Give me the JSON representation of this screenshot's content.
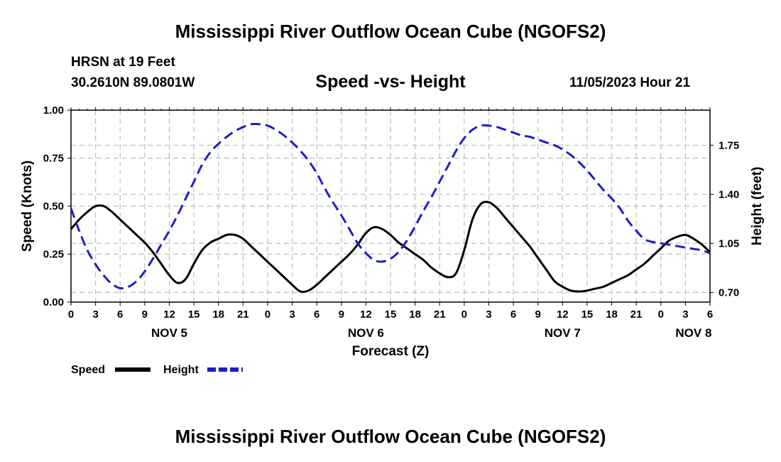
{
  "titles": {
    "main": "Mississippi River Outflow Ocean Cube (NGOFS2)",
    "main_repeat": "Mississippi River Outflow Ocean Cube (NGOFS2)",
    "station": "HRSN at 19 Feet",
    "coords": "30.2610N  89.0801W",
    "subtitle": "Speed -vs- Height",
    "datetime": "11/05/2023 Hour 21"
  },
  "chart_data": {
    "type": "line",
    "title": "Speed -vs- Height",
    "xlabel": "Forecast (Z)",
    "ylabel": "Speed (Knots)",
    "y2label": "Height (feet)",
    "x_unit": "hours since 11/05 00Z",
    "xlim": [
      0,
      78
    ],
    "ylim": [
      0,
      1.0
    ],
    "y2lim": [
      0.631,
      2.0
    ],
    "x_tick_values": [
      0,
      3,
      6,
      9,
      12,
      15,
      18,
      21,
      24,
      27,
      30,
      33,
      36,
      39,
      42,
      45,
      48,
      51,
      54,
      57,
      60,
      63,
      66,
      69,
      72,
      75,
      78
    ],
    "x_tick_labels": [
      "0",
      "3",
      "6",
      "9",
      "12",
      "15",
      "18",
      "21",
      "0",
      "3",
      "6",
      "9",
      "12",
      "15",
      "18",
      "21",
      "0",
      "3",
      "6",
      "9",
      "12",
      "15",
      "18",
      "21",
      "0",
      "3",
      "6"
    ],
    "y_ticks": [
      0.0,
      0.25,
      0.5,
      0.75,
      1.0
    ],
    "y_tick_labels": [
      "0.00",
      "0.25",
      "0.50",
      "0.75",
      "1.00"
    ],
    "y2_ticks": [
      0.7,
      1.05,
      1.4,
      1.75
    ],
    "y2_tick_labels": [
      "0.70",
      "1.05",
      "1.40",
      "1.75"
    ],
    "day_labels": [
      {
        "x": 12,
        "label": "NOV 5"
      },
      {
        "x": 36,
        "label": "NOV 6"
      },
      {
        "x": 60,
        "label": "NOV 7"
      },
      {
        "x": 76,
        "label": "NOV 8"
      }
    ],
    "grid": true,
    "legend": {
      "position": "bottom-left"
    },
    "series": [
      {
        "name": "Speed",
        "axis": "left",
        "color": "#000000",
        "dash": "solid",
        "x": [
          0,
          1,
          2,
          3,
          4,
          5,
          6,
          7,
          8,
          9,
          10,
          11,
          12,
          13,
          14,
          15,
          16,
          17,
          18,
          19,
          20,
          21,
          22,
          23,
          24,
          25,
          26,
          27,
          28,
          29,
          30,
          31,
          32,
          33,
          34,
          35,
          36,
          37,
          38,
          39,
          40,
          41,
          42,
          43,
          44,
          45,
          46,
          47,
          48,
          49,
          50,
          51,
          52,
          53,
          54,
          55,
          56,
          57,
          58,
          59,
          60,
          61,
          62,
          63,
          64,
          65,
          66,
          67,
          68,
          69,
          70,
          71,
          72,
          73,
          74,
          75,
          76,
          77,
          78
        ],
        "values": [
          0.38,
          0.43,
          0.47,
          0.5,
          0.5,
          0.47,
          0.43,
          0.39,
          0.35,
          0.31,
          0.26,
          0.2,
          0.14,
          0.1,
          0.12,
          0.2,
          0.27,
          0.31,
          0.33,
          0.35,
          0.35,
          0.33,
          0.29,
          0.25,
          0.21,
          0.17,
          0.13,
          0.09,
          0.055,
          0.06,
          0.09,
          0.13,
          0.17,
          0.21,
          0.25,
          0.3,
          0.36,
          0.39,
          0.38,
          0.35,
          0.31,
          0.28,
          0.25,
          0.22,
          0.18,
          0.15,
          0.13,
          0.15,
          0.27,
          0.43,
          0.51,
          0.52,
          0.49,
          0.44,
          0.39,
          0.34,
          0.29,
          0.23,
          0.17,
          0.11,
          0.08,
          0.06,
          0.055,
          0.06,
          0.07,
          0.08,
          0.1,
          0.12,
          0.14,
          0.17,
          0.2,
          0.24,
          0.28,
          0.32,
          0.34,
          0.35,
          0.33,
          0.3,
          0.26
        ]
      },
      {
        "name": "Height",
        "axis": "right",
        "color": "#1e1ec8",
        "dash": "14,7",
        "x": [
          0,
          1,
          2,
          3,
          4,
          5,
          6,
          7,
          8,
          9,
          10,
          11,
          12,
          13,
          14,
          15,
          16,
          17,
          18,
          19,
          20,
          21,
          22,
          23,
          24,
          25,
          26,
          27,
          28,
          29,
          30,
          31,
          32,
          33,
          34,
          35,
          36,
          37,
          38,
          39,
          40,
          41,
          42,
          43,
          44,
          45,
          46,
          47,
          48,
          49,
          50,
          51,
          52,
          53,
          54,
          55,
          56,
          57,
          58,
          59,
          60,
          61,
          62,
          63,
          64,
          65,
          66,
          67,
          68,
          69,
          70,
          71,
          72,
          73,
          74,
          75,
          76,
          77,
          78
        ],
        "values": [
          1.3,
          1.14,
          1.0,
          0.9,
          0.82,
          0.76,
          0.73,
          0.74,
          0.78,
          0.85,
          0.94,
          1.04,
          1.14,
          1.25,
          1.37,
          1.49,
          1.61,
          1.7,
          1.76,
          1.81,
          1.85,
          1.88,
          1.9,
          1.9,
          1.89,
          1.86,
          1.82,
          1.77,
          1.71,
          1.64,
          1.55,
          1.44,
          1.34,
          1.25,
          1.15,
          1.05,
          0.98,
          0.93,
          0.92,
          0.94,
          0.99,
          1.07,
          1.17,
          1.28,
          1.38,
          1.49,
          1.6,
          1.71,
          1.8,
          1.86,
          1.89,
          1.89,
          1.88,
          1.86,
          1.84,
          1.82,
          1.81,
          1.79,
          1.77,
          1.75,
          1.72,
          1.68,
          1.63,
          1.57,
          1.5,
          1.43,
          1.37,
          1.3,
          1.21,
          1.14,
          1.08,
          1.06,
          1.05,
          1.04,
          1.03,
          1.02,
          1.01,
          1.0,
          0.98
        ]
      }
    ]
  },
  "legend": {
    "speed_label": "Speed",
    "height_label": "Height"
  }
}
